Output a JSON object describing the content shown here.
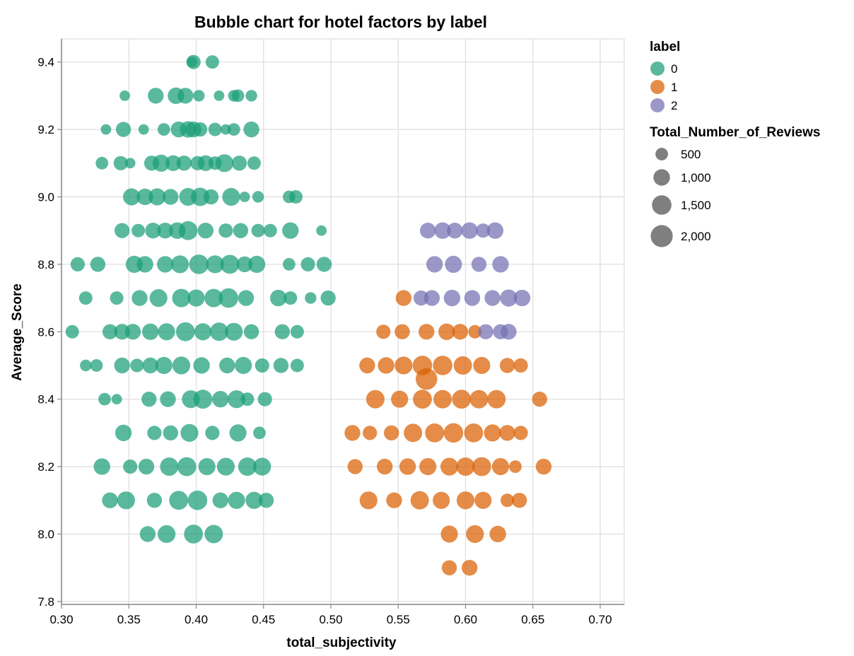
{
  "chart_data": {
    "type": "scatter",
    "title": "Bubble chart for hotel factors by label",
    "xlabel": "total_subjectivity",
    "ylabel": "Average_Score",
    "xlim": [
      0.3,
      0.7
    ],
    "ylim": [
      7.8,
      9.45
    ],
    "x_ticks": [
      "0.30",
      "0.35",
      "0.40",
      "0.45",
      "0.50",
      "0.55",
      "0.60",
      "0.65",
      "0.70"
    ],
    "y_ticks": [
      "7.8",
      "8.0",
      "8.2",
      "8.4",
      "8.6",
      "8.8",
      "9.0",
      "9.2",
      "9.4"
    ],
    "grid": true,
    "legend_position": "right",
    "color_legend": {
      "title": "label",
      "items": [
        {
          "label": "0",
          "color": "#1b9e77"
        },
        {
          "label": "1",
          "color": "#d95f02"
        },
        {
          "label": "2",
          "color": "#7570b3"
        }
      ]
    },
    "size_legend": {
      "title": "Total_Number_of_Reviews",
      "items": [
        {
          "label": "500",
          "value": 500
        },
        {
          "label": "1,000",
          "value": 1000
        },
        {
          "label": "1,500",
          "value": 1500
        },
        {
          "label": "2,000",
          "value": 2000
        }
      ]
    },
    "series": [
      {
        "name": "0",
        "color": "#1b9e77",
        "points": [
          [
            0.398,
            9.4,
            700
          ],
          [
            0.412,
            9.4,
            600
          ],
          [
            0.397,
            9.4,
            300
          ],
          [
            0.347,
            9.3,
            300
          ],
          [
            0.37,
            9.3,
            900
          ],
          [
            0.385,
            9.3,
            1000
          ],
          [
            0.392,
            9.3,
            900
          ],
          [
            0.402,
            9.3,
            400
          ],
          [
            0.417,
            9.3,
            300
          ],
          [
            0.428,
            9.3,
            400
          ],
          [
            0.431,
            9.3,
            500
          ],
          [
            0.441,
            9.3,
            400
          ],
          [
            0.333,
            9.2,
            300
          ],
          [
            0.346,
            9.2,
            800
          ],
          [
            0.361,
            9.2,
            300
          ],
          [
            0.376,
            9.2,
            500
          ],
          [
            0.387,
            9.2,
            900
          ],
          [
            0.394,
            9.2,
            1000
          ],
          [
            0.398,
            9.2,
            900
          ],
          [
            0.403,
            9.2,
            700
          ],
          [
            0.414,
            9.2,
            600
          ],
          [
            0.422,
            9.2,
            300
          ],
          [
            0.428,
            9.2,
            500
          ],
          [
            0.441,
            9.2,
            900
          ],
          [
            0.33,
            9.1,
            500
          ],
          [
            0.344,
            9.1,
            700
          ],
          [
            0.351,
            9.1,
            300
          ],
          [
            0.367,
            9.1,
            800
          ],
          [
            0.374,
            9.1,
            1100
          ],
          [
            0.383,
            9.1,
            900
          ],
          [
            0.391,
            9.1,
            800
          ],
          [
            0.401,
            9.1,
            700
          ],
          [
            0.407,
            9.1,
            900
          ],
          [
            0.414,
            9.1,
            600
          ],
          [
            0.421,
            9.1,
            1200
          ],
          [
            0.432,
            9.1,
            800
          ],
          [
            0.443,
            9.1,
            600
          ],
          [
            0.352,
            9.0,
            1100
          ],
          [
            0.362,
            9.0,
            1000
          ],
          [
            0.371,
            9.0,
            1100
          ],
          [
            0.381,
            9.0,
            900
          ],
          [
            0.394,
            9.0,
            1200
          ],
          [
            0.403,
            9.0,
            1300
          ],
          [
            0.411,
            9.0,
            800
          ],
          [
            0.426,
            9.0,
            1200
          ],
          [
            0.436,
            9.0,
            300
          ],
          [
            0.446,
            9.0,
            400
          ],
          [
            0.469,
            9.0,
            500
          ],
          [
            0.474,
            9.0,
            600
          ],
          [
            0.345,
            8.9,
            800
          ],
          [
            0.357,
            8.9,
            600
          ],
          [
            0.368,
            8.9,
            900
          ],
          [
            0.377,
            8.9,
            900
          ],
          [
            0.386,
            8.9,
            1000
          ],
          [
            0.394,
            8.9,
            1400
          ],
          [
            0.407,
            8.9,
            900
          ],
          [
            0.422,
            8.9,
            700
          ],
          [
            0.433,
            8.9,
            800
          ],
          [
            0.446,
            8.9,
            600
          ],
          [
            0.455,
            8.9,
            600
          ],
          [
            0.47,
            8.9,
            1000
          ],
          [
            0.493,
            8.9,
            300
          ],
          [
            0.312,
            8.8,
            700
          ],
          [
            0.327,
            8.8,
            800
          ],
          [
            0.354,
            8.8,
            1100
          ],
          [
            0.362,
            8.8,
            1000
          ],
          [
            0.377,
            8.8,
            1000
          ],
          [
            0.388,
            8.8,
            1200
          ],
          [
            0.402,
            8.8,
            1500
          ],
          [
            0.414,
            8.8,
            1200
          ],
          [
            0.425,
            8.8,
            1400
          ],
          [
            0.436,
            8.8,
            900
          ],
          [
            0.445,
            8.8,
            1100
          ],
          [
            0.469,
            8.8,
            500
          ],
          [
            0.483,
            8.8,
            700
          ],
          [
            0.495,
            8.8,
            800
          ],
          [
            0.318,
            8.7,
            600
          ],
          [
            0.341,
            8.7,
            600
          ],
          [
            0.358,
            8.7,
            900
          ],
          [
            0.372,
            8.7,
            1200
          ],
          [
            0.389,
            8.7,
            1300
          ],
          [
            0.4,
            8.7,
            1100
          ],
          [
            0.413,
            8.7,
            1300
          ],
          [
            0.424,
            8.7,
            1500
          ],
          [
            0.437,
            8.7,
            900
          ],
          [
            0.461,
            8.7,
            1000
          ],
          [
            0.47,
            8.7,
            600
          ],
          [
            0.485,
            8.7,
            400
          ],
          [
            0.498,
            8.7,
            800
          ],
          [
            0.308,
            8.6,
            600
          ],
          [
            0.336,
            8.6,
            800
          ],
          [
            0.345,
            8.6,
            900
          ],
          [
            0.353,
            8.6,
            900
          ],
          [
            0.366,
            8.6,
            1000
          ],
          [
            0.378,
            8.6,
            1100
          ],
          [
            0.392,
            8.6,
            1400
          ],
          [
            0.405,
            8.6,
            1100
          ],
          [
            0.417,
            8.6,
            1300
          ],
          [
            0.428,
            8.6,
            1200
          ],
          [
            0.441,
            8.6,
            800
          ],
          [
            0.464,
            8.6,
            800
          ],
          [
            0.475,
            8.6,
            600
          ],
          [
            0.318,
            8.5,
            400
          ],
          [
            0.326,
            8.5,
            500
          ],
          [
            0.345,
            8.5,
            900
          ],
          [
            0.356,
            8.5,
            600
          ],
          [
            0.366,
            8.5,
            900
          ],
          [
            0.376,
            8.5,
            1100
          ],
          [
            0.389,
            8.5,
            1200
          ],
          [
            0.404,
            8.5,
            1000
          ],
          [
            0.423,
            8.5,
            900
          ],
          [
            0.435,
            8.5,
            1100
          ],
          [
            0.449,
            8.5,
            700
          ],
          [
            0.463,
            8.5,
            800
          ],
          [
            0.475,
            8.5,
            600
          ],
          [
            0.332,
            8.4,
            500
          ],
          [
            0.341,
            8.4,
            300
          ],
          [
            0.365,
            8.4,
            800
          ],
          [
            0.379,
            8.4,
            900
          ],
          [
            0.396,
            8.4,
            1200
          ],
          [
            0.405,
            8.4,
            1400
          ],
          [
            0.418,
            8.4,
            1000
          ],
          [
            0.43,
            8.4,
            1200
          ],
          [
            0.438,
            8.4,
            600
          ],
          [
            0.451,
            8.4,
            700
          ],
          [
            0.346,
            8.3,
            1000
          ],
          [
            0.369,
            8.3,
            700
          ],
          [
            0.381,
            8.3,
            800
          ],
          [
            0.395,
            8.3,
            1200
          ],
          [
            0.412,
            8.3,
            700
          ],
          [
            0.431,
            8.3,
            1100
          ],
          [
            0.447,
            8.3,
            500
          ],
          [
            0.33,
            8.2,
            1000
          ],
          [
            0.351,
            8.2,
            700
          ],
          [
            0.363,
            8.2,
            900
          ],
          [
            0.38,
            8.2,
            1300
          ],
          [
            0.393,
            8.2,
            1400
          ],
          [
            0.408,
            8.2,
            1100
          ],
          [
            0.422,
            8.2,
            1200
          ],
          [
            0.438,
            8.2,
            1300
          ],
          [
            0.449,
            8.2,
            1200
          ],
          [
            0.336,
            8.1,
            900
          ],
          [
            0.348,
            8.1,
            1200
          ],
          [
            0.369,
            8.1,
            800
          ],
          [
            0.387,
            8.1,
            1400
          ],
          [
            0.401,
            8.1,
            1500
          ],
          [
            0.418,
            8.1,
            900
          ],
          [
            0.43,
            8.1,
            1100
          ],
          [
            0.443,
            8.1,
            1100
          ],
          [
            0.452,
            8.1,
            800
          ],
          [
            0.364,
            8.0,
            900
          ],
          [
            0.378,
            8.0,
            1200
          ],
          [
            0.398,
            8.0,
            1400
          ],
          [
            0.413,
            8.0,
            1300
          ]
        ]
      },
      {
        "name": "1",
        "color": "#d95f02",
        "points": [
          [
            0.588,
            7.9,
            800
          ],
          [
            0.603,
            7.9,
            900
          ],
          [
            0.588,
            8.0,
            1100
          ],
          [
            0.607,
            8.0,
            1200
          ],
          [
            0.624,
            8.0,
            1000
          ],
          [
            0.528,
            8.1,
            1200
          ],
          [
            0.547,
            8.1,
            900
          ],
          [
            0.566,
            8.1,
            1300
          ],
          [
            0.582,
            8.1,
            1100
          ],
          [
            0.6,
            8.1,
            1200
          ],
          [
            0.613,
            8.1,
            1100
          ],
          [
            0.631,
            8.1,
            600
          ],
          [
            0.64,
            8.1,
            800
          ],
          [
            0.518,
            8.2,
            800
          ],
          [
            0.54,
            8.2,
            900
          ],
          [
            0.557,
            8.2,
            1000
          ],
          [
            0.572,
            8.2,
            1100
          ],
          [
            0.588,
            8.2,
            1200
          ],
          [
            0.6,
            8.2,
            1300
          ],
          [
            0.612,
            8.2,
            1400
          ],
          [
            0.626,
            8.2,
            1100
          ],
          [
            0.637,
            8.2,
            500
          ],
          [
            0.658,
            8.2,
            900
          ],
          [
            0.516,
            8.3,
            900
          ],
          [
            0.529,
            8.3,
            700
          ],
          [
            0.545,
            8.3,
            800
          ],
          [
            0.561,
            8.3,
            1300
          ],
          [
            0.577,
            8.3,
            1400
          ],
          [
            0.591,
            8.3,
            1500
          ],
          [
            0.606,
            8.3,
            1400
          ],
          [
            0.62,
            8.3,
            1100
          ],
          [
            0.631,
            8.3,
            900
          ],
          [
            0.641,
            8.3,
            700
          ],
          [
            0.533,
            8.4,
            1300
          ],
          [
            0.551,
            8.4,
            1100
          ],
          [
            0.568,
            8.4,
            1400
          ],
          [
            0.583,
            8.4,
            1300
          ],
          [
            0.597,
            8.4,
            1400
          ],
          [
            0.61,
            8.4,
            1300
          ],
          [
            0.623,
            8.4,
            1300
          ],
          [
            0.655,
            8.4,
            800
          ],
          [
            0.527,
            8.5,
            900
          ],
          [
            0.541,
            8.5,
            1000
          ],
          [
            0.554,
            8.5,
            1200
          ],
          [
            0.568,
            8.5,
            1500
          ],
          [
            0.583,
            8.5,
            1500
          ],
          [
            0.598,
            8.5,
            1300
          ],
          [
            0.612,
            8.5,
            1100
          ],
          [
            0.631,
            8.5,
            800
          ],
          [
            0.641,
            8.5,
            700
          ],
          [
            0.571,
            8.46,
            1900
          ],
          [
            0.539,
            8.6,
            700
          ],
          [
            0.553,
            8.6,
            800
          ],
          [
            0.571,
            8.6,
            900
          ],
          [
            0.586,
            8.6,
            1000
          ],
          [
            0.596,
            8.6,
            900
          ],
          [
            0.607,
            8.6,
            600
          ],
          [
            0.554,
            8.7,
            900
          ]
        ]
      },
      {
        "name": "2",
        "color": "#7570b3",
        "points": [
          [
            0.572,
            8.9,
            900
          ],
          [
            0.583,
            8.9,
            1000
          ],
          [
            0.592,
            8.9,
            900
          ],
          [
            0.603,
            8.9,
            1000
          ],
          [
            0.613,
            8.9,
            700
          ],
          [
            0.622,
            8.9,
            1000
          ],
          [
            0.577,
            8.8,
            1000
          ],
          [
            0.591,
            8.8,
            1100
          ],
          [
            0.61,
            8.8,
            800
          ],
          [
            0.626,
            8.8,
            1000
          ],
          [
            0.567,
            8.7,
            800
          ],
          [
            0.575,
            8.7,
            900
          ],
          [
            0.59,
            8.7,
            1000
          ],
          [
            0.605,
            8.7,
            900
          ],
          [
            0.62,
            8.7,
            900
          ],
          [
            0.632,
            8.7,
            1100
          ],
          [
            0.642,
            8.7,
            1000
          ],
          [
            0.615,
            8.6,
            800
          ],
          [
            0.626,
            8.6,
            800
          ],
          [
            0.632,
            8.6,
            900
          ]
        ]
      }
    ]
  }
}
